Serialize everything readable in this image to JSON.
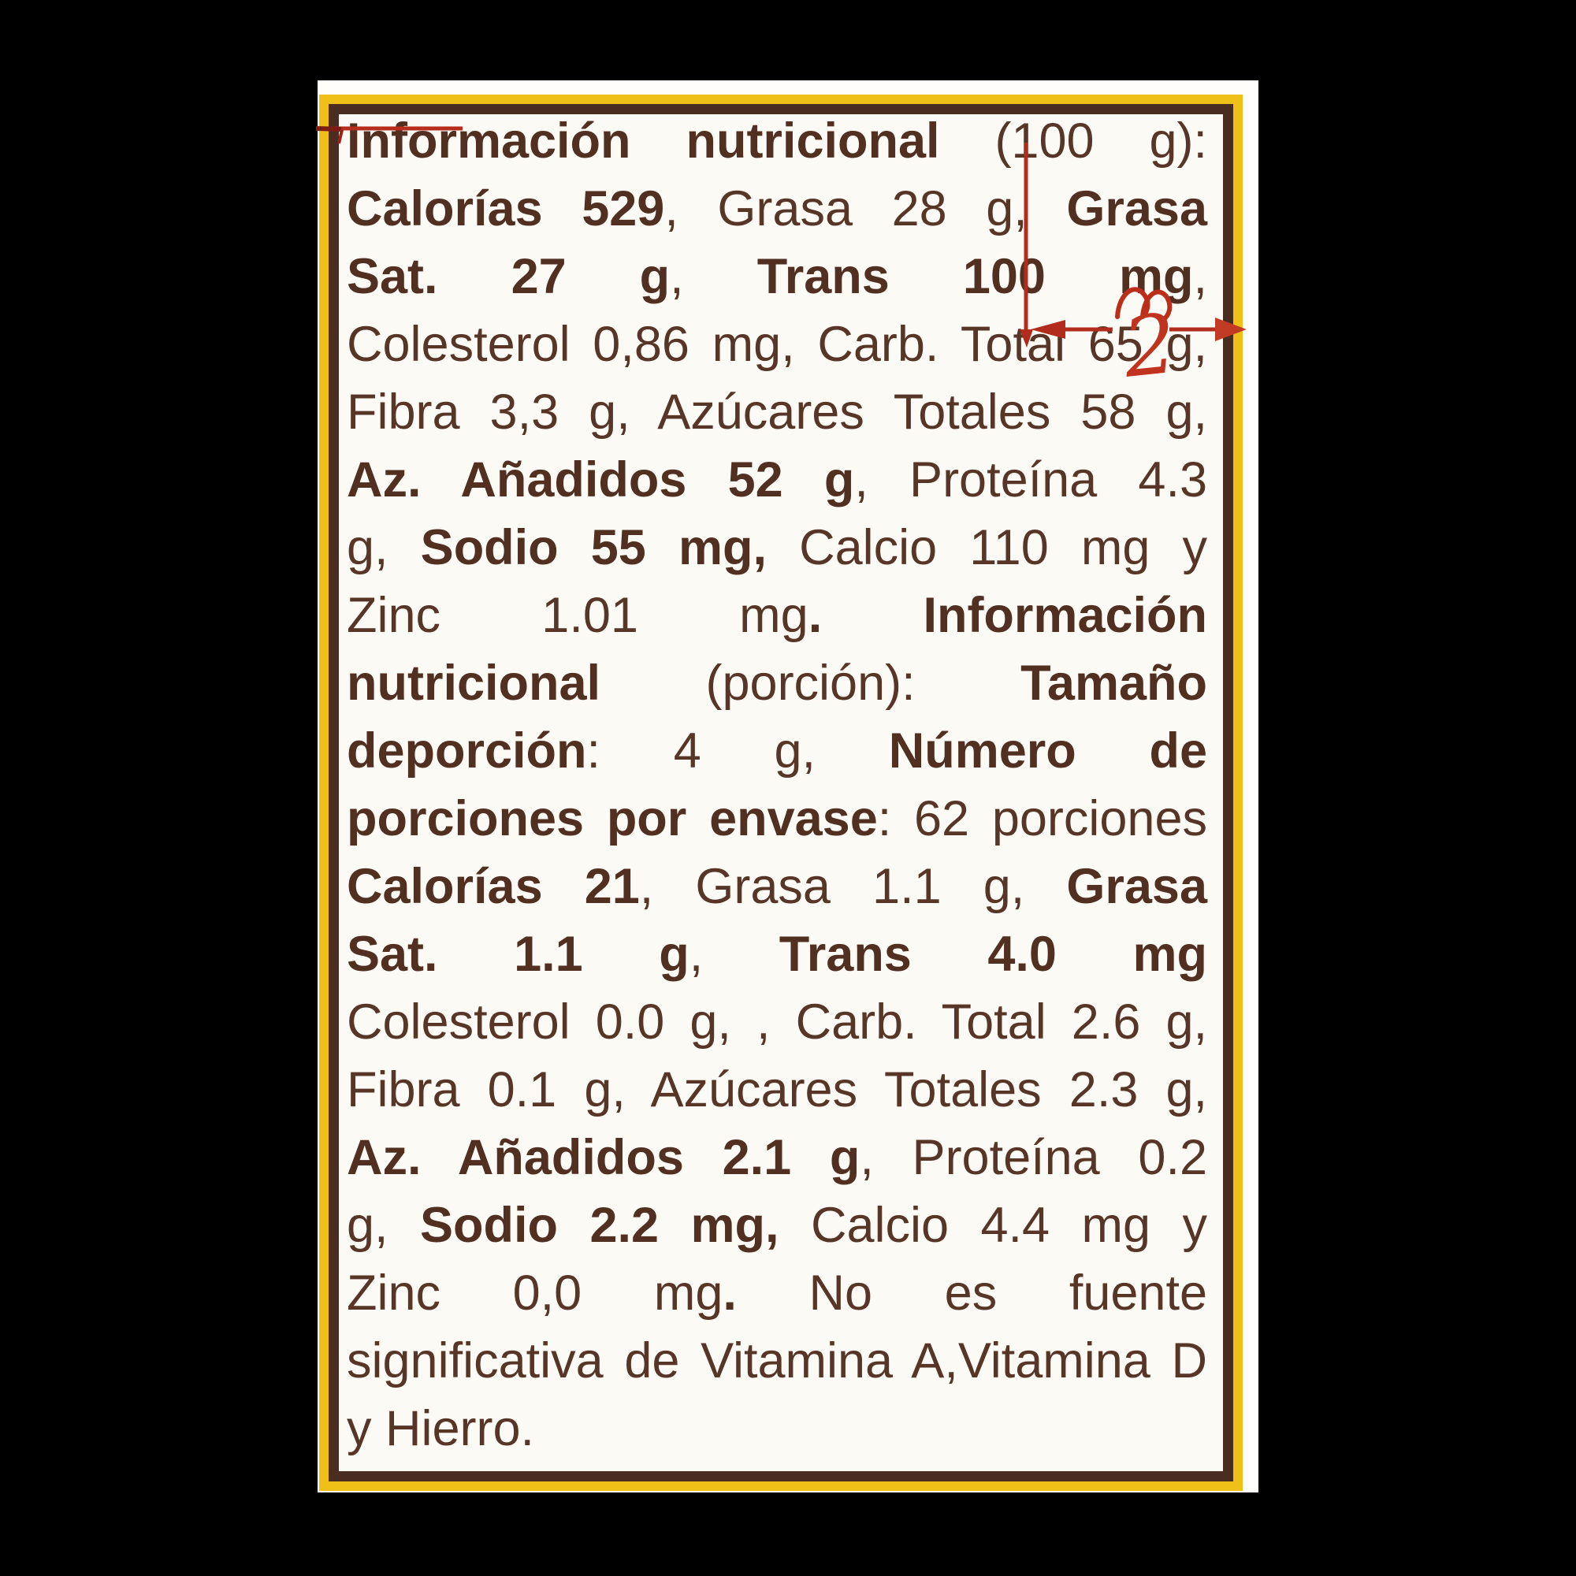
{
  "background_color": "#000000",
  "label_panel": {
    "paper_color": "#fffefb",
    "border_outer_color": "#efc118",
    "border_inner_color": "#4a2c20",
    "text_color": "#573527",
    "lines": [
      {
        "justify": true,
        "segments": [
          {
            "text": "Información nutricional",
            "bold": true
          },
          {
            "text": " (100 g):",
            "bold": false
          }
        ]
      },
      {
        "justify": true,
        "segments": [
          {
            "text": "Calorías 529",
            "bold": true
          },
          {
            "text": ", Grasa 28 g, ",
            "bold": false
          },
          {
            "text": "Grasa",
            "bold": true
          }
        ]
      },
      {
        "justify": true,
        "segments": [
          {
            "text": "Sat. 27 g",
            "bold": true
          },
          {
            "text": ", ",
            "bold": false
          },
          {
            "text": "Trans 100 mg",
            "bold": true
          },
          {
            "text": ",",
            "bold": false
          }
        ]
      },
      {
        "justify": true,
        "segments": [
          {
            "text": "Colesterol 0,86 mg, Carb. Total 65 g,",
            "bold": false
          }
        ]
      },
      {
        "justify": true,
        "segments": [
          {
            "text": "Fibra 3,3 g, Azúcares Totales 58 g,",
            "bold": false
          }
        ]
      },
      {
        "justify": true,
        "segments": [
          {
            "text": "Az. Añadidos 52 g",
            "bold": true
          },
          {
            "text": ", Proteína 4.3",
            "bold": false
          }
        ]
      },
      {
        "justify": true,
        "segments": [
          {
            "text": "g, ",
            "bold": false
          },
          {
            "text": "Sodio 55 mg,",
            "bold": true
          },
          {
            "text": " Calcio 110 mg y",
            "bold": false
          }
        ]
      },
      {
        "justify": true,
        "segments": [
          {
            "text": "Zinc 1.01 mg",
            "bold": false
          },
          {
            "text": ". Información",
            "bold": true
          }
        ]
      },
      {
        "justify": true,
        "segments": [
          {
            "text": "nutricional",
            "bold": true
          },
          {
            "text": " (porción): ",
            "bold": false
          },
          {
            "text": "Tamaño",
            "bold": true
          }
        ]
      },
      {
        "justify": true,
        "segments": [
          {
            "text": "deporción",
            "bold": true
          },
          {
            "text": ": 4 g, ",
            "bold": false
          },
          {
            "text": "Número de",
            "bold": true
          }
        ]
      },
      {
        "justify": true,
        "segments": [
          {
            "text": "porciones por envase",
            "bold": true
          },
          {
            "text": ": 62 porciones",
            "bold": false
          }
        ]
      },
      {
        "justify": true,
        "segments": [
          {
            "text": "Calorías 21",
            "bold": true
          },
          {
            "text": ", Grasa 1.1 g, ",
            "bold": false
          },
          {
            "text": "Grasa",
            "bold": true
          }
        ]
      },
      {
        "justify": true,
        "segments": [
          {
            "text": "Sat. 1.1 g",
            "bold": true
          },
          {
            "text": ", ",
            "bold": false
          },
          {
            "text": "Trans 4.0 mg",
            "bold": true
          }
        ]
      },
      {
        "justify": true,
        "segments": [
          {
            "text": "Colesterol 0.0 g, , Carb. Total 2.6 g,",
            "bold": false
          }
        ]
      },
      {
        "justify": true,
        "segments": [
          {
            "text": "Fibra 0.1 g, Azúcares Totales 2.3 g,",
            "bold": false
          }
        ]
      },
      {
        "justify": true,
        "segments": [
          {
            "text": "Az. Añadidos 2.1 g",
            "bold": true
          },
          {
            "text": ", Proteína 0.2",
            "bold": false
          }
        ]
      },
      {
        "justify": true,
        "segments": [
          {
            "text": "g, ",
            "bold": false
          },
          {
            "text": "Sodio 2.2 mg,",
            "bold": true
          },
          {
            "text": " Calcio 4.4 mg y",
            "bold": false
          }
        ]
      },
      {
        "justify": true,
        "segments": [
          {
            "text": "Zinc 0,0 mg",
            "bold": false
          },
          {
            "text": ".",
            "bold": true
          },
          {
            "text": " No es fuente",
            "bold": false
          }
        ]
      },
      {
        "justify": true,
        "segments": [
          {
            "text": "significativa de Vitamina A,Vitamina D",
            "bold": false
          }
        ]
      },
      {
        "justify": false,
        "segments": [
          {
            "text": "y Hierro.",
            "bold": false
          }
        ]
      }
    ]
  },
  "annotations": {
    "color": "#b62d1c",
    "inserted_text": "2",
    "marks": [
      "red-underline-stroke-top-left",
      "red-vertical-rule-through-100",
      "red-horizontal-arrow-rule-at-total-65g",
      "red-scribble-over-mg",
      "handwritten-2-insertion"
    ]
  }
}
